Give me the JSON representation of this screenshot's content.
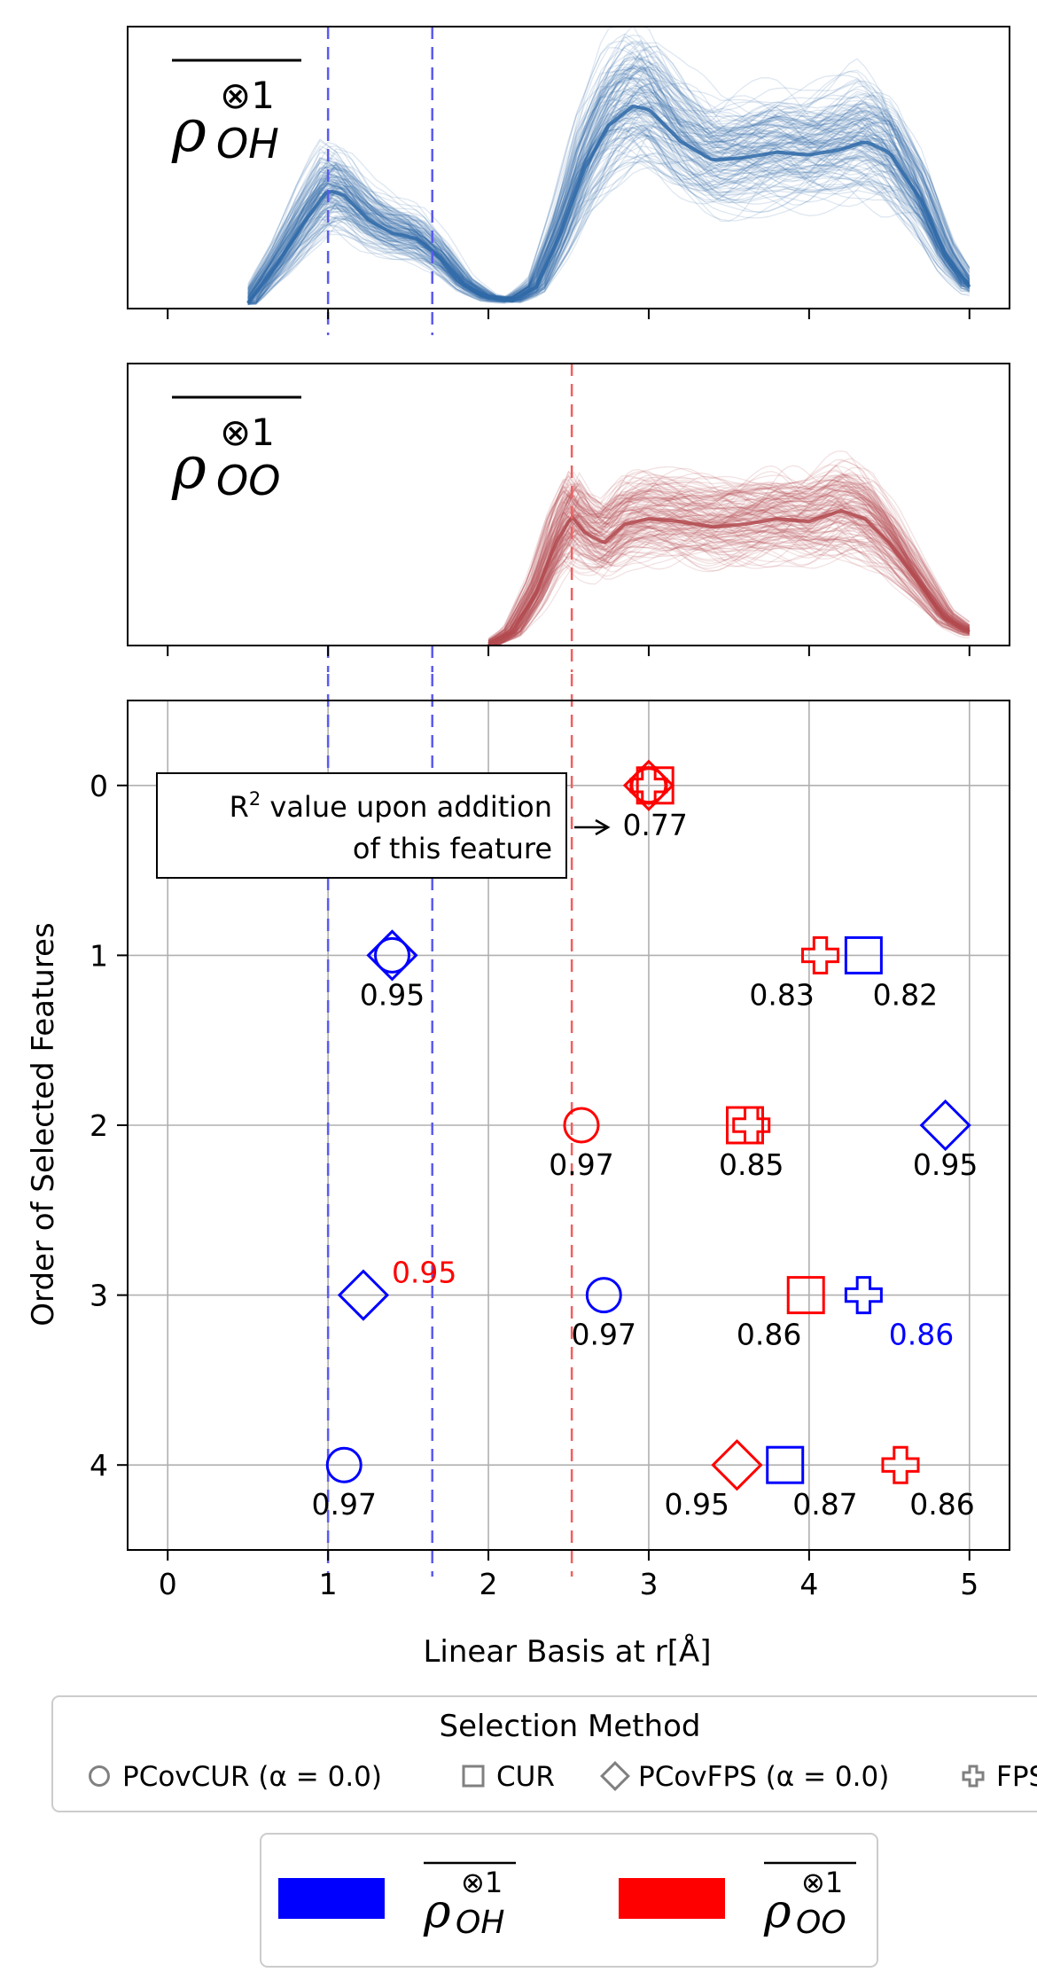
{
  "chart_data": [
    {
      "type": "line",
      "panel": "top",
      "label_main": "ρ",
      "label_sup": "⊗1",
      "label_sub": "OH",
      "color": "#2f6aa8",
      "x_range": [
        0.5,
        5.0
      ],
      "vlines": [
        1.0,
        1.65
      ],
      "vline_color": "#5a5af0",
      "mean_profile": {
        "x": [
          0.5,
          0.7,
          0.85,
          1.0,
          1.1,
          1.25,
          1.4,
          1.55,
          1.7,
          1.85,
          2.0,
          2.15,
          2.3,
          2.45,
          2.6,
          2.75,
          2.9,
          3.0,
          3.2,
          3.4,
          3.6,
          3.8,
          4.0,
          4.2,
          4.35,
          4.5,
          4.7,
          4.85,
          5.0
        ],
        "y": [
          0.02,
          0.18,
          0.32,
          0.44,
          0.42,
          0.33,
          0.28,
          0.26,
          0.19,
          0.09,
          0.04,
          0.03,
          0.08,
          0.28,
          0.52,
          0.68,
          0.75,
          0.74,
          0.62,
          0.55,
          0.56,
          0.58,
          0.57,
          0.59,
          0.62,
          0.58,
          0.4,
          0.2,
          0.08
        ]
      }
    },
    {
      "type": "line",
      "panel": "middle",
      "label_main": "ρ",
      "label_sup": "⊗1",
      "label_sub": "OO",
      "color": "#b24a4f",
      "x_range": [
        2.0,
        5.0
      ],
      "vlines": [
        2.52
      ],
      "vline_color": "#f06060",
      "mean_profile": {
        "x": [
          2.0,
          2.15,
          2.3,
          2.42,
          2.52,
          2.6,
          2.72,
          2.85,
          3.0,
          3.2,
          3.4,
          3.6,
          3.8,
          4.0,
          4.1,
          4.2,
          4.35,
          4.5,
          4.7,
          4.85,
          5.0
        ],
        "y": [
          0.0,
          0.05,
          0.2,
          0.38,
          0.48,
          0.42,
          0.38,
          0.45,
          0.47,
          0.46,
          0.44,
          0.45,
          0.47,
          0.46,
          0.48,
          0.5,
          0.47,
          0.38,
          0.22,
          0.1,
          0.05
        ]
      }
    },
    {
      "type": "scatter",
      "panel": "bottom",
      "xlabel": "Linear Basis at r[Å]",
      "ylabel": "Order of Selected Features",
      "xlim": [
        -0.25,
        5.25
      ],
      "ylim": [
        4.5,
        -0.5
      ],
      "xticks": [
        "0",
        "1",
        "2",
        "3",
        "4",
        "5"
      ],
      "yticks": [
        "0",
        "1",
        "2",
        "3",
        "4"
      ],
      "grid": true,
      "vlines": [
        {
          "x": 1.0,
          "color": "#5a5af0"
        },
        {
          "x": 1.65,
          "color": "#5a5af0"
        },
        {
          "x": 2.52,
          "color": "#f06060"
        }
      ],
      "annotation": {
        "line1": "R",
        "sup": "2",
        "line1_rest": " value upon addition",
        "line2": "of this feature"
      },
      "points": [
        {
          "x": 3.0,
          "y": 0,
          "marker": "plus",
          "color": "#ff0000"
        },
        {
          "x": 3.04,
          "y": 0,
          "marker": "square",
          "color": "#ff0000"
        },
        {
          "x": 3.0,
          "y": 0,
          "marker": "diamond",
          "color": "#ff0000"
        },
        {
          "x": 3.0,
          "y": 0,
          "marker": "circle",
          "color": "#ff0000"
        },
        {
          "x": 1.4,
          "y": 1,
          "marker": "circle",
          "color": "#0000ff"
        },
        {
          "x": 1.4,
          "y": 1,
          "marker": "diamond",
          "color": "#0000ff"
        },
        {
          "x": 4.07,
          "y": 1,
          "marker": "plus",
          "color": "#ff0000"
        },
        {
          "x": 4.34,
          "y": 1,
          "marker": "square",
          "color": "#0000ff"
        },
        {
          "x": 2.58,
          "y": 2,
          "marker": "circle",
          "color": "#ff0000"
        },
        {
          "x": 3.64,
          "y": 2,
          "marker": "plus",
          "color": "#ff0000"
        },
        {
          "x": 3.6,
          "y": 2,
          "marker": "square",
          "color": "#ff0000"
        },
        {
          "x": 4.85,
          "y": 2,
          "marker": "diamond",
          "color": "#0000ff"
        },
        {
          "x": 1.22,
          "y": 3,
          "marker": "diamond",
          "color": "#0000ff"
        },
        {
          "x": 2.72,
          "y": 3,
          "marker": "circle",
          "color": "#0000ff"
        },
        {
          "x": 3.98,
          "y": 3,
          "marker": "square",
          "color": "#ff0000"
        },
        {
          "x": 4.34,
          "y": 3,
          "marker": "plus",
          "color": "#0000ff"
        },
        {
          "x": 1.1,
          "y": 4,
          "marker": "circle",
          "color": "#0000ff"
        },
        {
          "x": 3.55,
          "y": 4,
          "marker": "diamond",
          "color": "#ff0000"
        },
        {
          "x": 3.85,
          "y": 4,
          "marker": "square",
          "color": "#0000ff"
        },
        {
          "x": 4.57,
          "y": 4,
          "marker": "plus",
          "color": "#ff0000"
        }
      ],
      "value_labels": [
        {
          "text": "0.77",
          "x": 3.04,
          "y": 0,
          "color": "#000000",
          "pos": "below"
        },
        {
          "text": "0.95",
          "x": 1.4,
          "y": 1,
          "color": "#000000",
          "pos": "below"
        },
        {
          "text": "0.83",
          "x": 3.83,
          "y": 1,
          "color": "#000000",
          "pos": "below"
        },
        {
          "text": "0.82",
          "x": 4.6,
          "y": 1,
          "color": "#000000",
          "pos": "below"
        },
        {
          "text": "0.97",
          "x": 2.58,
          "y": 2,
          "color": "#000000",
          "pos": "below"
        },
        {
          "text": "0.85",
          "x": 3.64,
          "y": 2,
          "color": "#000000",
          "pos": "below"
        },
        {
          "text": "0.95",
          "x": 4.85,
          "y": 2,
          "color": "#000000",
          "pos": "below"
        },
        {
          "text": "0.95",
          "x": 1.6,
          "y": 3,
          "color": "#ff0000",
          "pos": "above"
        },
        {
          "text": "0.97",
          "x": 2.72,
          "y": 3,
          "color": "#000000",
          "pos": "below"
        },
        {
          "text": "0.86",
          "x": 3.75,
          "y": 3,
          "color": "#000000",
          "pos": "below"
        },
        {
          "text": "0.86",
          "x": 4.7,
          "y": 3,
          "color": "#0000ff",
          "pos": "below"
        },
        {
          "text": "0.97",
          "x": 1.1,
          "y": 4,
          "color": "#000000",
          "pos": "below"
        },
        {
          "text": "0.95",
          "x": 3.3,
          "y": 4,
          "color": "#000000",
          "pos": "below"
        },
        {
          "text": "0.87",
          "x": 4.1,
          "y": 4,
          "color": "#000000",
          "pos": "below"
        },
        {
          "text": "0.86",
          "x": 4.83,
          "y": 4,
          "color": "#000000",
          "pos": "below"
        }
      ],
      "legend_method": {
        "title": "Selection Method",
        "entries": [
          {
            "marker": "circle",
            "label": "PCovCUR (α = 0.0)"
          },
          {
            "marker": "square",
            "label": "CUR"
          },
          {
            "marker": "diamond",
            "label": "PCovFPS (α = 0.0)"
          },
          {
            "marker": "plus",
            "label": "FPS"
          }
        ]
      },
      "legend_feature": {
        "entries": [
          {
            "color": "#0000ff",
            "main": "ρ",
            "sup": "⊗1",
            "sub": "OH"
          },
          {
            "color": "#ff0000",
            "main": "ρ",
            "sup": "⊗1",
            "sub": "OO"
          }
        ]
      }
    }
  ]
}
